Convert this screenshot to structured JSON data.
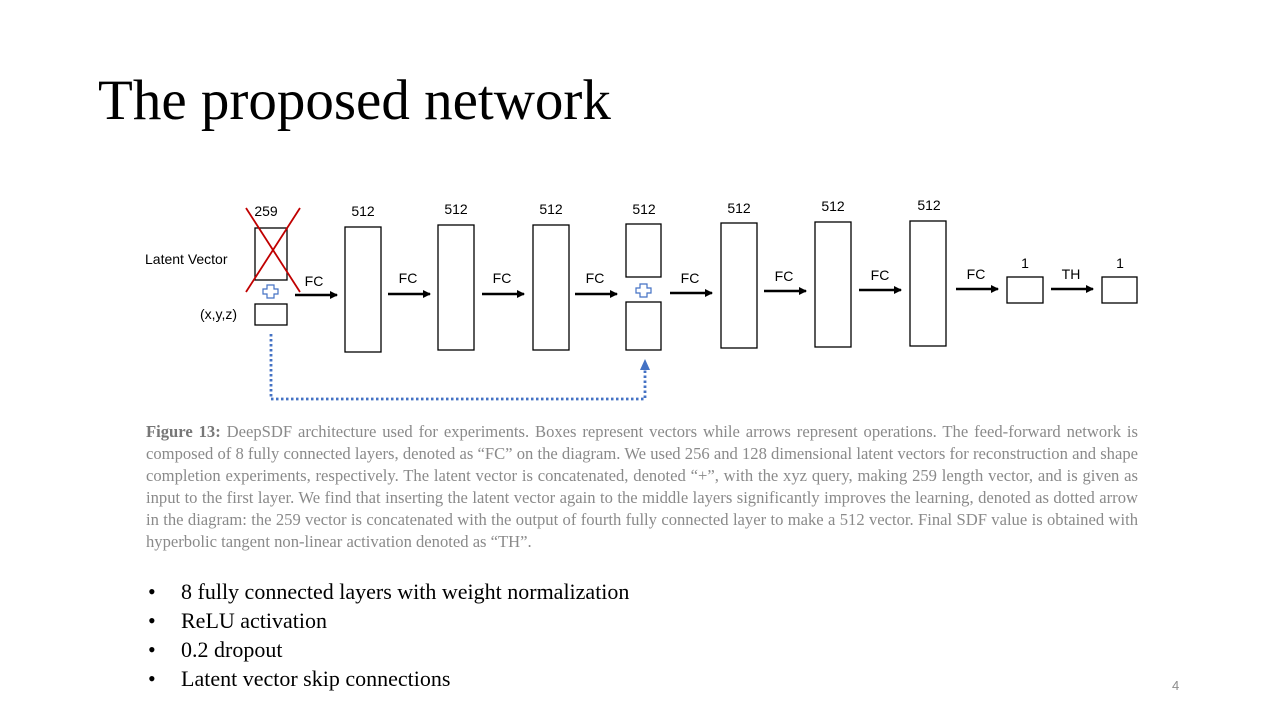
{
  "title": "The proposed network",
  "diagram": {
    "input_size": "259",
    "latent_label": "Latent Vector",
    "xyz_label": "(x,y,z)",
    "layer_sizes": [
      "512",
      "512",
      "512",
      "512",
      "512",
      "512",
      "512"
    ],
    "op_labels": [
      "FC",
      "FC",
      "FC",
      "FC",
      "FC",
      "FC",
      "FC",
      "FC",
      "TH"
    ],
    "output_sizes": [
      "1",
      "1"
    ],
    "colors": {
      "cross": "#c00000",
      "skip": "#4472c4",
      "concat": "#4472c4"
    }
  },
  "caption": {
    "label": "Figure 13:",
    "text": "DeepSDF architecture used for experiments. Boxes represent vectors while arrows represent operations. The feed-forward network is composed of 8 fully connected layers, denoted as “FC” on the diagram. We used 256 and 128 dimensional latent vectors for reconstruction and shape completion experiments, respectively. The latent vector is concatenated, denoted “+”, with the xyz query, making 259 length vector, and is given as input to the first layer. We find that inserting the latent vector again to the middle layers significantly improves the learning, denoted as dotted arrow in the diagram: the 259 vector is concatenated with the output of fourth fully connected layer to make a 512 vector. Final SDF value is obtained with hyperbolic tangent non-linear activation denoted as “TH”."
  },
  "bullets": [
    "8 fully connected layers with weight normalization",
    "ReLU activation",
    "0.2 dropout",
    "Latent vector skip connections"
  ],
  "bullet_symbol": "•",
  "page_number": "4"
}
